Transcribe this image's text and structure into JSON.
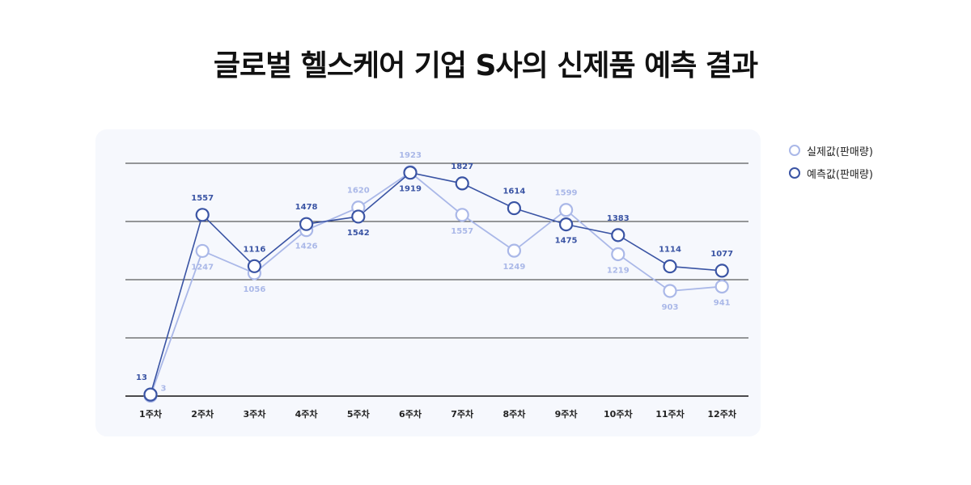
{
  "title": "글로벌 헬스케어 기업 S사의 신제품 예측 결과",
  "chart_data": {
    "type": "line",
    "categories": [
      "1주차",
      "2주차",
      "3주차",
      "4주차",
      "5주차",
      "6주차",
      "7주차",
      "8주차",
      "9주차",
      "10주차",
      "11주차",
      "12주차"
    ],
    "series": [
      {
        "name": "실제값(판매량)",
        "values": [
          3,
          1247,
          1056,
          1426,
          1620,
          1923,
          1557,
          1249,
          1599,
          1219,
          903,
          941
        ],
        "color": "#aab8e8"
      },
      {
        "name": "예측값(판매량)",
        "values": [
          13,
          1557,
          1116,
          1478,
          1542,
          1919,
          1827,
          1614,
          1475,
          1383,
          1114,
          1077
        ],
        "color": "#3a54a4"
      }
    ],
    "ylim": [
      0,
      2000
    ],
    "grid": true,
    "legend": "right"
  }
}
